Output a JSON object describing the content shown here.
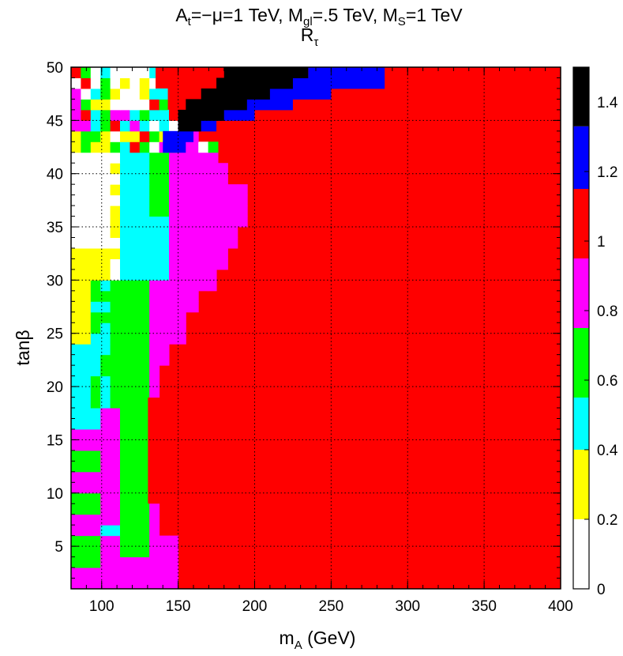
{
  "chart_data": {
    "type": "heatmap",
    "title": {
      "main": "A_t=−μ=1 TeV, M_gl=.5 TeV, M_S=1 TeV",
      "parts": [
        {
          "t": "A"
        },
        {
          "t": "t",
          "sub": true
        },
        {
          "t": "=−μ=1 TeV, M"
        },
        {
          "t": "gl",
          "sub": true
        },
        {
          "t": "=.5 TeV, M"
        },
        {
          "t": "S",
          "sub": true
        },
        {
          "t": "=1 TeV"
        }
      ],
      "second_line": "R",
      "second_line_sub": "τ"
    },
    "xlabel": "m",
    "xlabel_sub": "A",
    "xlabel_unit": " (GeV)",
    "ylabel": "tanβ",
    "xlim": [
      80,
      400
    ],
    "ylim": [
      1,
      50
    ],
    "xticks": [
      100,
      150,
      200,
      250,
      300,
      350,
      400
    ],
    "yticks": [
      5,
      10,
      15,
      20,
      25,
      30,
      35,
      40,
      45,
      50
    ],
    "grid": true,
    "colorbar": {
      "range": [
        0,
        1.5
      ],
      "ticks": [
        "0",
        "0.2",
        "0.4",
        "0.6",
        "0.8",
        "1",
        "1.2",
        "1.4"
      ],
      "tick_values": [
        0,
        0.2,
        0.4,
        0.6,
        0.8,
        1.0,
        1.2,
        1.4
      ],
      "levels": [
        {
          "from": 0.0,
          "to": 0.2,
          "color": "#ffffff"
        },
        {
          "from": 0.2,
          "to": 0.4,
          "color": "#ffff00"
        },
        {
          "from": 0.4,
          "to": 0.55,
          "color": "#00ffff"
        },
        {
          "from": 0.55,
          "to": 0.75,
          "color": "#00ff00"
        },
        {
          "from": 0.75,
          "to": 0.95,
          "color": "#ff00ff"
        },
        {
          "from": 0.95,
          "to": 1.15,
          "color": "#ff0000"
        },
        {
          "from": 1.15,
          "to": 1.33,
          "color": "#0000ff"
        },
        {
          "from": 1.33,
          "to": 1.5,
          "color": "#000000"
        }
      ]
    },
    "cells": {
      "x_bin_width": 6.4,
      "y_bin_width": 1,
      "regions_note": "R_tau class regions, described by boundaries in data units",
      "red_boundary": [
        [
          1,
          150
        ],
        [
          4,
          150
        ],
        [
          5,
          140
        ],
        [
          7,
          140
        ],
        [
          8,
          130
        ],
        [
          16,
          130
        ],
        [
          18,
          138
        ],
        [
          21,
          145
        ],
        [
          23,
          155
        ],
        [
          26,
          165
        ],
        [
          28,
          175
        ],
        [
          30,
          184
        ],
        [
          32,
          190
        ],
        [
          34,
          196
        ],
        [
          36,
          196
        ],
        [
          38,
          184
        ],
        [
          40,
          176
        ],
        [
          42,
          164
        ],
        [
          43,
          157
        ],
        [
          44,
          150
        ],
        [
          45,
          143
        ],
        [
          47,
          135
        ],
        [
          50,
          135
        ]
      ],
      "black_region": [
        [
          45,
          150,
          165
        ],
        [
          46,
          150,
          180
        ],
        [
          47,
          155,
          195
        ],
        [
          48,
          165,
          210
        ],
        [
          49,
          175,
          225
        ],
        [
          50,
          180,
          235
        ]
      ],
      "blue_region": [
        [
          43,
          140,
          155
        ],
        [
          44,
          140,
          160
        ],
        [
          45,
          150,
          175
        ],
        [
          46,
          165,
          200
        ],
        [
          47,
          190,
          225
        ],
        [
          48,
          205,
          250
        ],
        [
          49,
          220,
          285
        ],
        [
          50,
          235,
          285
        ]
      ]
    }
  }
}
